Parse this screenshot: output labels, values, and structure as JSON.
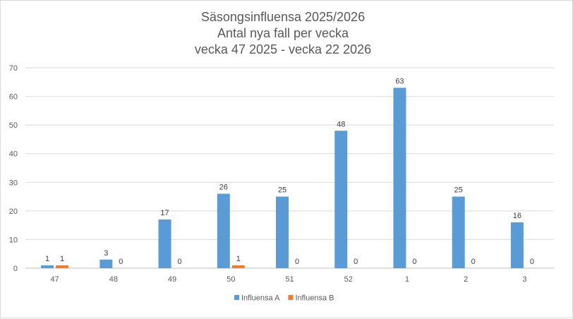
{
  "chart_data": {
    "type": "bar",
    "title_lines": [
      "Säsongsinfluensa 2025/2026",
      "Antal nya fall per vecka",
      "vecka 47 2025 - vecka 22 2026"
    ],
    "categories": [
      "47",
      "48",
      "49",
      "50",
      "51",
      "52",
      "1",
      "2",
      "3"
    ],
    "series": [
      {
        "name": "Influensa A",
        "color": "#5B9BD5",
        "values": [
          1,
          3,
          17,
          26,
          25,
          48,
          63,
          25,
          16
        ]
      },
      {
        "name": "Influensa B",
        "color": "#ED7D31",
        "values": [
          1,
          0,
          0,
          1,
          0,
          0,
          0,
          0,
          0
        ]
      }
    ],
    "ylim": [
      0,
      70
    ],
    "yticks": [
      0,
      10,
      20,
      30,
      40,
      50,
      60,
      70
    ],
    "grid": true,
    "data_labels": true,
    "legend_position": "bottom"
  }
}
